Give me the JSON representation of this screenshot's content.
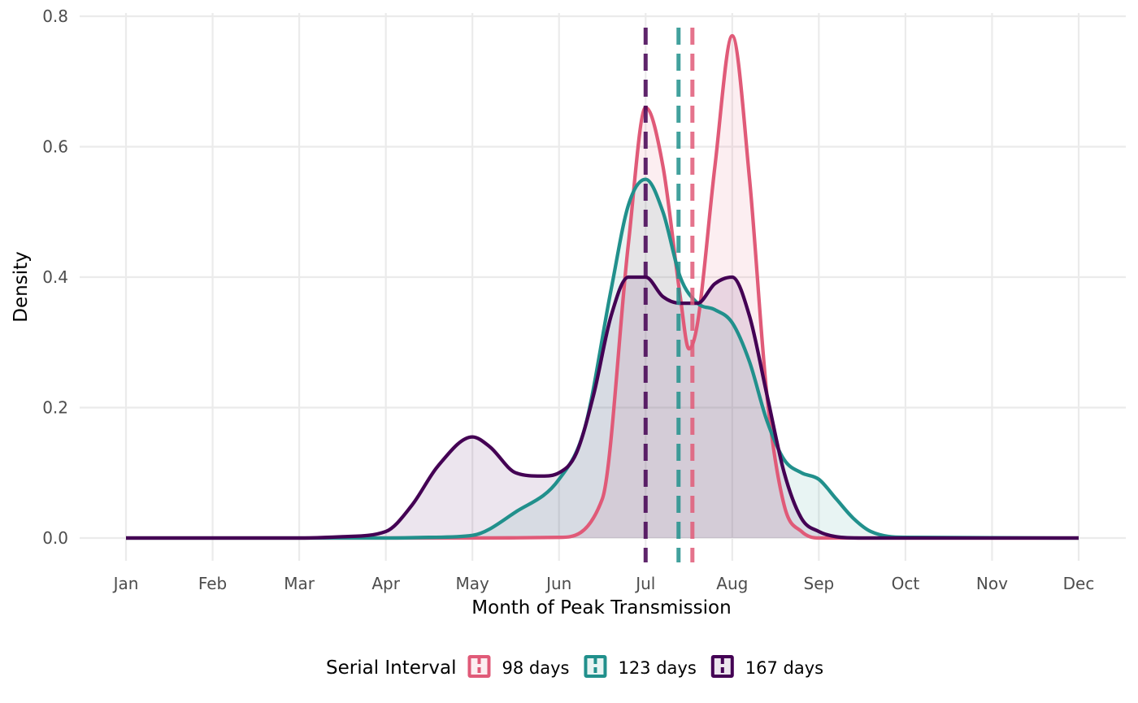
{
  "chart_data": {
    "type": "area",
    "xlabel": "Month of Peak Transmission",
    "ylabel": "Density",
    "xlim": [
      1,
      12
    ],
    "ylim": [
      0,
      0.8
    ],
    "x_ticks": [
      "Jan",
      "Feb",
      "Mar",
      "Apr",
      "May",
      "Jun",
      "Jul",
      "Aug",
      "Sep",
      "Oct",
      "Nov",
      "Dec"
    ],
    "y_ticks": [
      "0.0",
      "0.2",
      "0.4",
      "0.6",
      "0.8"
    ],
    "grid": true,
    "legend": {
      "title": "Serial Interval",
      "position": "bottom",
      "entries": [
        "98 days",
        "123 days",
        "167 days"
      ]
    },
    "series": [
      {
        "name": "98 days",
        "color": "#e05a78",
        "mean_line_x": 7.54,
        "x": [
          1,
          4.0,
          5.0,
          6.0,
          6.5,
          6.8,
          7.0,
          7.2,
          7.4,
          7.5,
          7.6,
          7.8,
          8.0,
          8.2,
          8.4,
          8.6,
          8.8,
          9.0,
          9.5,
          12
        ],
        "y": [
          0,
          0,
          0,
          0.001,
          0.06,
          0.45,
          0.66,
          0.57,
          0.37,
          0.29,
          0.33,
          0.57,
          0.77,
          0.55,
          0.22,
          0.05,
          0.01,
          0,
          0,
          0
        ]
      },
      {
        "name": "123 days",
        "color": "#21908c",
        "mean_line_x": 7.38,
        "x": [
          1,
          4.0,
          4.5,
          5.0,
          5.5,
          6.0,
          6.3,
          6.6,
          6.8,
          7.0,
          7.2,
          7.4,
          7.6,
          7.8,
          8.0,
          8.2,
          8.4,
          8.6,
          8.8,
          9.0,
          9.2,
          9.4,
          9.6,
          10.0,
          12
        ],
        "y": [
          0,
          0,
          0.001,
          0.004,
          0.04,
          0.09,
          0.17,
          0.38,
          0.51,
          0.55,
          0.5,
          0.4,
          0.36,
          0.35,
          0.33,
          0.27,
          0.18,
          0.12,
          0.1,
          0.09,
          0.06,
          0.03,
          0.01,
          0.001,
          0
        ]
      },
      {
        "name": "167 days",
        "color": "#440154",
        "mean_line_x": 7.0,
        "x": [
          1,
          3.0,
          3.5,
          4.0,
          4.3,
          4.6,
          5.0,
          5.2,
          5.5,
          5.8,
          6.0,
          6.2,
          6.4,
          6.6,
          6.8,
          7.0,
          7.2,
          7.4,
          7.6,
          7.8,
          8.0,
          8.2,
          8.4,
          8.6,
          8.8,
          9.0,
          9.2,
          9.5,
          10,
          12
        ],
        "y": [
          0,
          0,
          0.002,
          0.01,
          0.05,
          0.11,
          0.155,
          0.14,
          0.1,
          0.095,
          0.1,
          0.13,
          0.22,
          0.34,
          0.4,
          0.4,
          0.37,
          0.36,
          0.36,
          0.39,
          0.4,
          0.34,
          0.22,
          0.1,
          0.03,
          0.01,
          0.002,
          0,
          0,
          0
        ]
      }
    ]
  }
}
